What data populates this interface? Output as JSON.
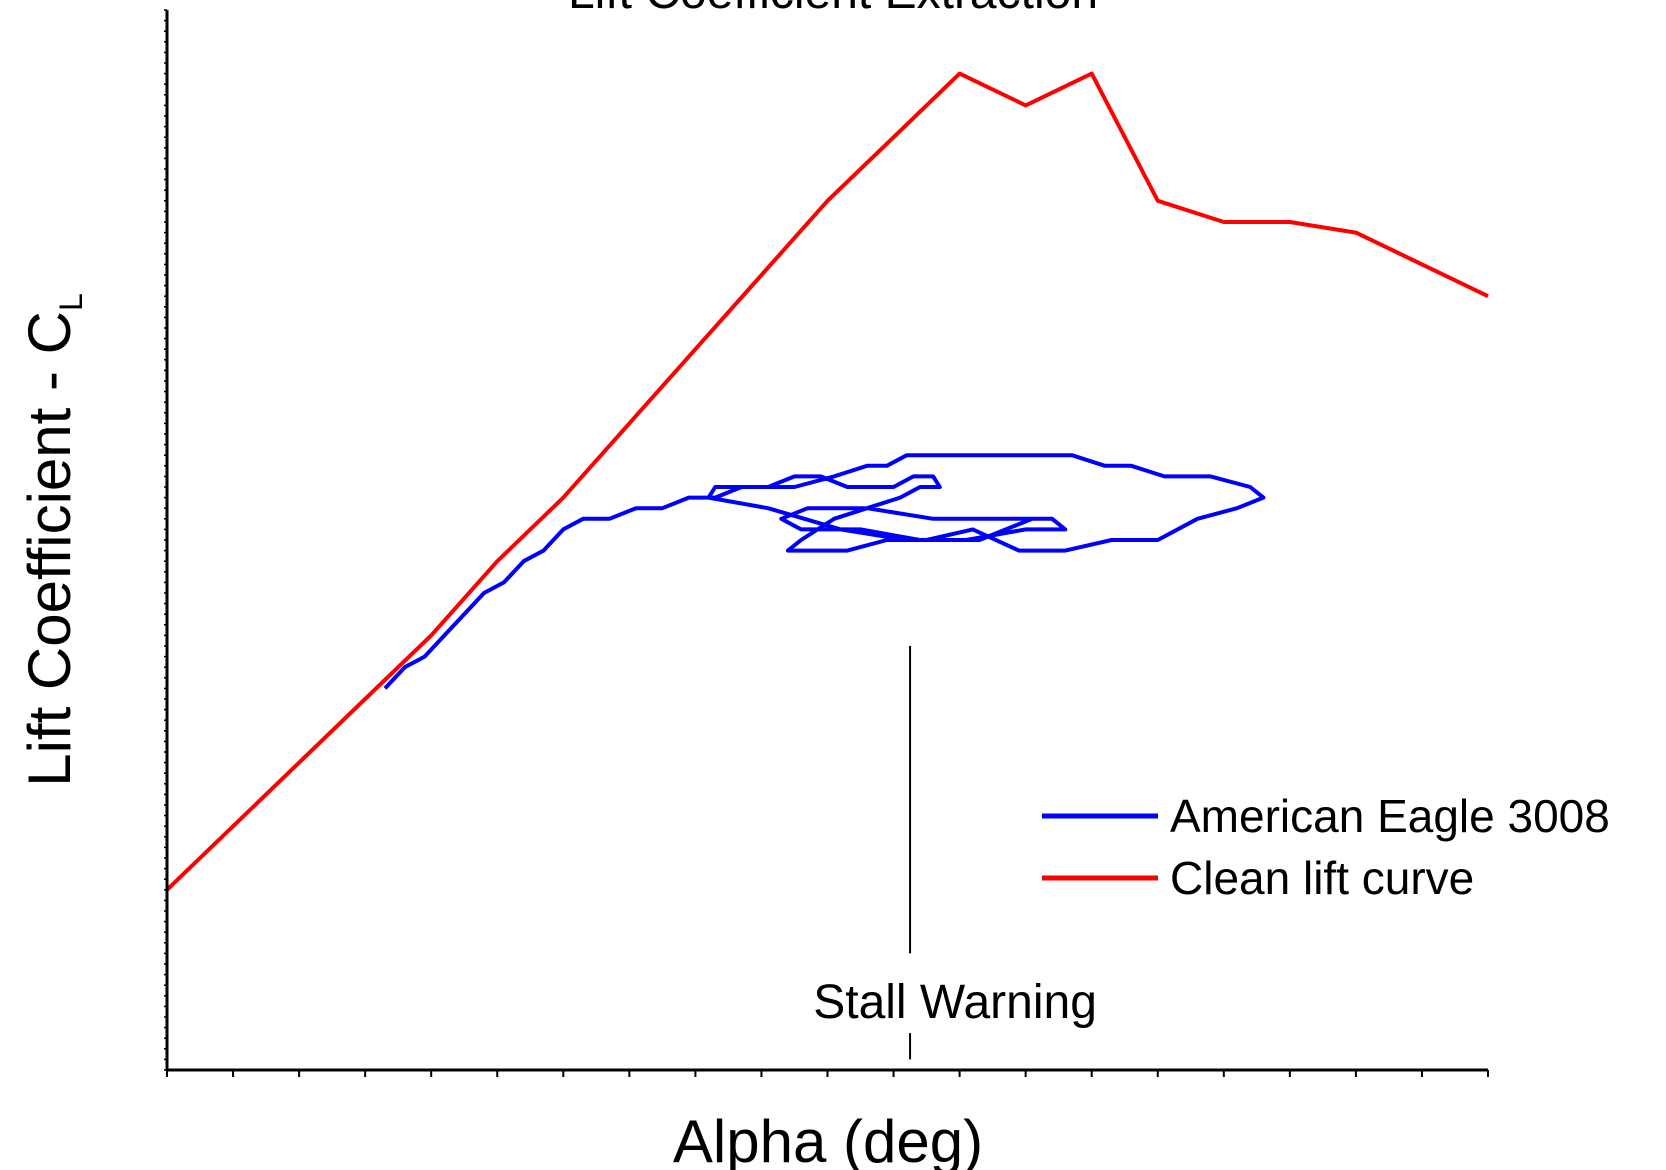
{
  "chart_data": {
    "type": "line",
    "title": "Lift Coefficient Extraction",
    "xlabel": "Alpha (deg)",
    "ylabel": "Lift Coefficient - C",
    "ylabel_subscript": "L",
    "xlim": [
      0,
      20
    ],
    "ylim": [
      0,
      1
    ],
    "x_minor_ticks": 20,
    "grid": false,
    "legend_position": "lower-right",
    "series": [
      {
        "name": "American Eagle 3008",
        "color": "#0000ff",
        "x": [
          3.3,
          3.6,
          3.9,
          4.2,
          4.5,
          4.8,
          5.1,
          5.4,
          5.7,
          6.0,
          6.3,
          6.7,
          7.1,
          7.5,
          7.9,
          8.3,
          8.7,
          9.1,
          9.5,
          9.9,
          10.3,
          10.7,
          11.0,
          11.3,
          11.6,
          11.7,
          11.4,
          11.1,
          10.6,
          10.1,
          9.6,
          9.4,
          9.7,
          10.3,
          10.9,
          11.5,
          12.2,
          12.9,
          13.6,
          14.3,
          15.0,
          15.6,
          16.2,
          16.6,
          16.4,
          15.8,
          15.1,
          14.6,
          14.2,
          13.7,
          13.0,
          12.5,
          12.0,
          11.5,
          11.2,
          10.9,
          10.6,
          10.1,
          9.5,
          9.0,
          8.3,
          8.2,
          9.1,
          10.2,
          11.2,
          12.1,
          13.0,
          13.6,
          13.4,
          12.6,
          11.6,
          10.6,
          9.7,
          9.3,
          9.6,
          10.5,
          11.4,
          12.3,
          13.1
        ],
        "y": [
          0.36,
          0.38,
          0.39,
          0.41,
          0.43,
          0.45,
          0.46,
          0.48,
          0.49,
          0.51,
          0.52,
          0.52,
          0.53,
          0.53,
          0.54,
          0.54,
          0.55,
          0.55,
          0.56,
          0.56,
          0.55,
          0.55,
          0.55,
          0.56,
          0.56,
          0.55,
          0.55,
          0.54,
          0.53,
          0.52,
          0.5,
          0.49,
          0.49,
          0.49,
          0.5,
          0.5,
          0.51,
          0.49,
          0.49,
          0.5,
          0.5,
          0.52,
          0.53,
          0.54,
          0.55,
          0.56,
          0.56,
          0.57,
          0.57,
          0.58,
          0.58,
          0.58,
          0.58,
          0.58,
          0.58,
          0.57,
          0.57,
          0.56,
          0.55,
          0.55,
          0.55,
          0.54,
          0.53,
          0.51,
          0.5,
          0.5,
          0.51,
          0.51,
          0.52,
          0.52,
          0.52,
          0.53,
          0.53,
          0.52,
          0.51,
          0.51,
          0.5,
          0.5,
          0.52
        ]
      },
      {
        "name": "Clean lift curve",
        "color": "#ff0000",
        "x": [
          0,
          1,
          2,
          3,
          4,
          5,
          6,
          7,
          8,
          9,
          10,
          11,
          12,
          13,
          14,
          15,
          16,
          17,
          18,
          19,
          20
        ],
        "y": [
          0.17,
          0.23,
          0.29,
          0.35,
          0.41,
          0.48,
          0.54,
          0.61,
          0.68,
          0.75,
          0.82,
          0.88,
          0.94,
          0.91,
          0.94,
          0.82,
          0.8,
          0.8,
          0.79,
          0.76,
          0.73
        ]
      }
    ],
    "annotations": [
      {
        "text": "Stall Warning",
        "x": 11.25,
        "y_top": 0.4,
        "y_bottom": 0.11,
        "y_text": 0.065,
        "y_tick_bottom": 0.01
      }
    ]
  }
}
